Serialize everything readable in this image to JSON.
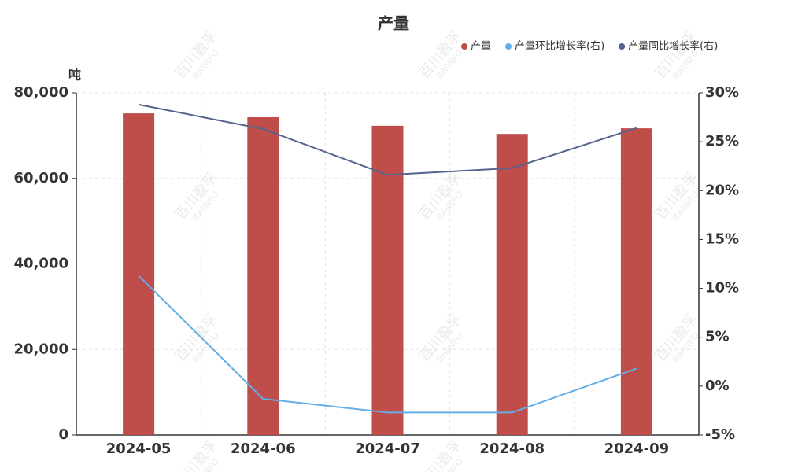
{
  "chart_data": {
    "type": "bar",
    "title": "产量",
    "y_label": "吨",
    "categories": [
      "2024-05",
      "2024-06",
      "2024-07",
      "2024-08",
      "2024-09"
    ],
    "series": [
      {
        "name": "产量",
        "type": "bar",
        "color": "#bf4d4a",
        "values": [
          75200,
          74300,
          72300,
          70400,
          71700
        ]
      },
      {
        "name": "产量环比增长率(右)",
        "type": "line",
        "axis": "y2",
        "color": "#63aee6",
        "values": [
          11.3,
          -1.3,
          -2.7,
          -2.7,
          1.8
        ]
      },
      {
        "name": "产量同比增长率(右)",
        "type": "line",
        "axis": "y2",
        "color": "#56658f",
        "values": [
          28.8,
          26.3,
          21.6,
          22.3,
          26.4
        ]
      }
    ],
    "ylim": [
      0,
      80000
    ],
    "yticks": [
      0,
      {
        "value": 20000,
        "label": "20,000"
      },
      {
        "value": 40000,
        "label": "40,000"
      },
      {
        "value": 60000,
        "label": "60,000"
      },
      {
        "value": 80000,
        "label": "80,000"
      }
    ],
    "y2lim": [
      -5,
      30
    ],
    "y2ticks": [
      {
        "value": -5,
        "label": "-5%"
      },
      {
        "value": 0,
        "label": "0%"
      },
      {
        "value": 5,
        "label": "5%"
      },
      {
        "value": 10,
        "label": "10%"
      },
      {
        "value": 15,
        "label": "15%"
      },
      {
        "value": 20,
        "label": "20%"
      },
      {
        "value": 25,
        "label": "25%"
      },
      {
        "value": 30,
        "label": "30%"
      }
    ],
    "grid": true,
    "legend": "top-right",
    "watermark": [
      "百川盈孚",
      "BAIINFO"
    ]
  }
}
